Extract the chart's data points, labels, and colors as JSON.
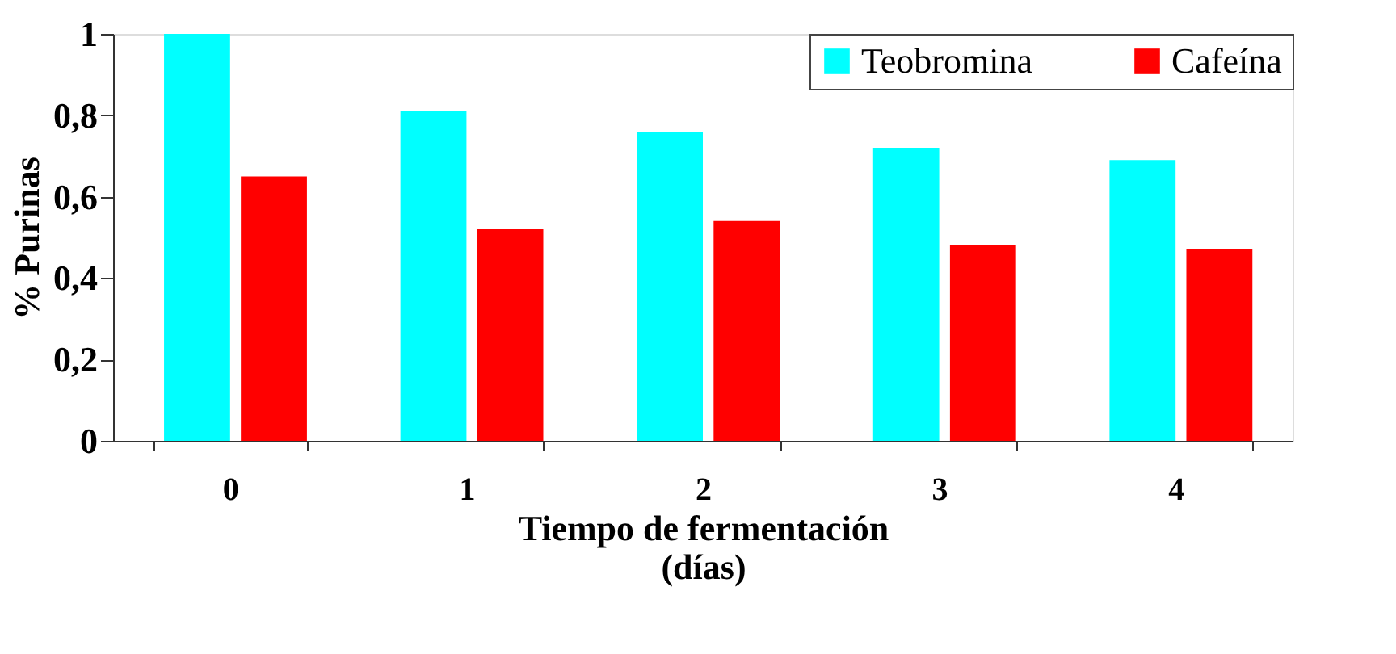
{
  "chart_data": {
    "type": "bar",
    "categories": [
      "0",
      "1",
      "2",
      "3",
      "4"
    ],
    "series": [
      {
        "name": "Teobromina",
        "color": "#00ffff",
        "values": [
          1.0,
          0.81,
          0.76,
          0.72,
          0.69
        ]
      },
      {
        "name": "Cafeína",
        "color": "#ff0000",
        "values": [
          0.65,
          0.52,
          0.54,
          0.48,
          0.47
        ]
      }
    ],
    "xlabel": "Tiempo de fermentación\n(días)",
    "ylabel": "% Purinas",
    "ylim": [
      0,
      1
    ],
    "yticks": [
      0,
      {
        "value": 0.2,
        "label": "0,2"
      },
      {
        "value": 0.4,
        "label": "0,4"
      },
      {
        "value": 0.6,
        "label": "0,6"
      },
      {
        "value": 0.8,
        "label": "0,8"
      },
      1
    ],
    "grid": false,
    "legend": "top right"
  }
}
